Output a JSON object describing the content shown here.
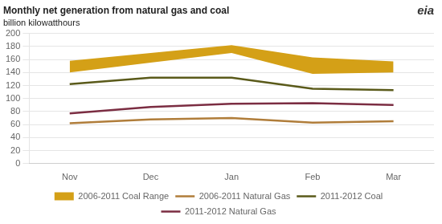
{
  "chart_data": {
    "type": "line",
    "title": "Monthly net generation from natural gas and coal",
    "subtitle": "billion kilowatthours",
    "annotations": [
      "eia"
    ],
    "categories": [
      "Nov",
      "Dec",
      "Jan",
      "Feb",
      "Mar"
    ],
    "series": [
      {
        "name": "2006-2011 Coal Range",
        "type": "band",
        "color": "#d4a017",
        "lower": [
          140,
          155,
          170,
          138,
          140
        ],
        "upper": [
          158,
          170,
          182,
          163,
          157
        ]
      },
      {
        "name": "2006-2011 Natural Gas",
        "color": "#b07d3a",
        "values": [
          62,
          68,
          70,
          63,
          65
        ]
      },
      {
        "name": "2011-2012 Coal",
        "color": "#5a5a1a",
        "values": [
          122,
          132,
          132,
          115,
          113
        ]
      },
      {
        "name": "2011-2012 Natural Gas",
        "color": "#7b2d42",
        "values": [
          77,
          87,
          92,
          93,
          90
        ]
      }
    ],
    "ylim": [
      0,
      200
    ],
    "yticks": [
      0,
      20,
      40,
      60,
      80,
      100,
      120,
      140,
      160,
      180,
      200
    ],
    "grid": true,
    "legend": "bottom"
  }
}
